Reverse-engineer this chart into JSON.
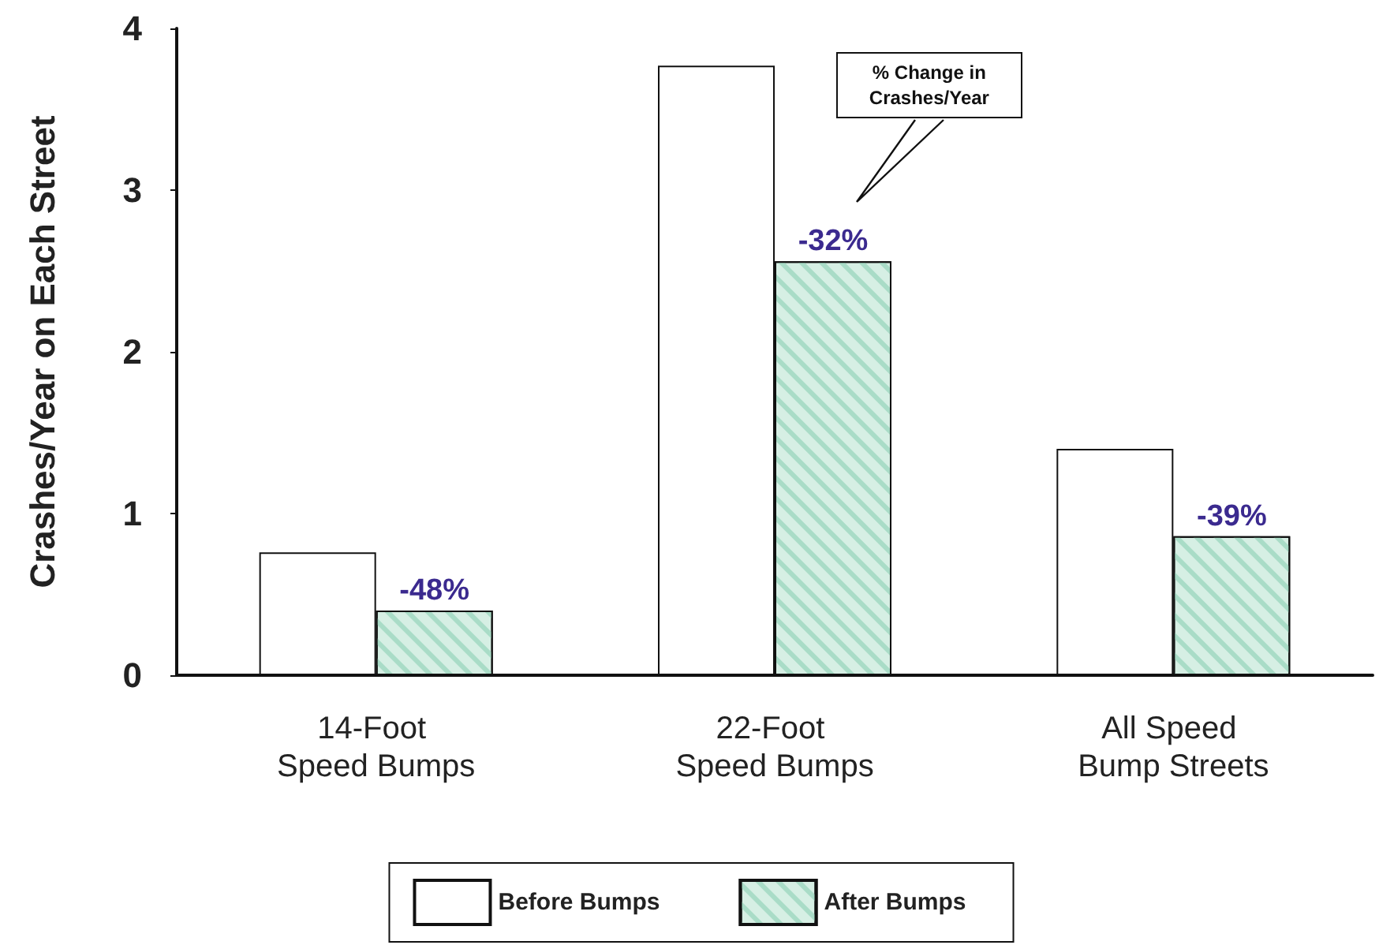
{
  "chart_data": {
    "type": "bar",
    "ylabel": "Crashes/Year on Each Street",
    "categories": [
      "14-Foot Speed Bumps",
      "22-Foot Speed Bumps",
      "All Speed Bump Streets"
    ],
    "series": [
      {
        "name": "Before Bumps",
        "color": "#ffffff",
        "values": [
          0.76,
          3.77,
          1.4
        ]
      },
      {
        "name": "After Bumps",
        "color": "#d6efe4",
        "values": [
          0.4,
          2.56,
          0.86
        ]
      }
    ],
    "ylim": [
      0,
      4
    ],
    "yticks": [
      0,
      1,
      2,
      3,
      4
    ],
    "grid": false,
    "legend": "bottom",
    "annotations": [
      {
        "text": "-48%",
        "x": "14-Foot Speed Bumps",
        "y": 0.4
      },
      {
        "text": "-32%",
        "x": "22-Foot Speed Bumps",
        "y": 2.56
      },
      {
        "text": "-39%",
        "x": "All Speed Bump Streets",
        "y": 0.86
      },
      "% Change in Crashes/Year"
    ]
  }
}
